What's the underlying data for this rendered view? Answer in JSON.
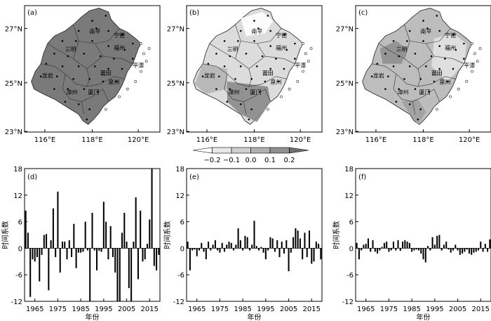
{
  "map_panels": [
    {
      "label": "(a)",
      "lat_ticks": [
        "27°N",
        "25°N",
        "23°N"
      ],
      "lon_ticks": [
        "116°E",
        "118°E",
        "120°E"
      ],
      "fill_color": "#7a7a7a",
      "cities": [
        "南平",
        "宁德",
        "三明",
        "福州",
        "莆田",
        "龙岩",
        "泉州",
        "漳州",
        "厦门",
        "平潭"
      ]
    },
    {
      "label": "(b)",
      "lat_ticks": [
        "27°N",
        "25°N",
        "23°N"
      ],
      "lon_ticks": [
        "116°E",
        "118°E",
        "120°E"
      ],
      "fill_color": "#dcdcdc",
      "cities": [
        "南平",
        "宁德",
        "三明",
        "福州",
        "莆田",
        "龙岩",
        "泉州",
        "漳州",
        "厦门",
        "平潭"
      ]
    },
    {
      "label": "(c)",
      "lat_ticks": [
        "27°N",
        "25°N",
        "23°N"
      ],
      "lon_ticks": [
        "116°E",
        "118°E",
        "120°E"
      ],
      "fill_color": "#bdbdbd",
      "cities": [
        "南平",
        "宁德",
        "三明",
        "福州",
        "莆田",
        "龙岩",
        "泉州",
        "漳州",
        "厦门",
        "平潭"
      ]
    }
  ],
  "colorbar": {
    "ticks": [
      "−0.2",
      "−0.1",
      "0.0",
      "0.1",
      "0.2"
    ],
    "colors": [
      "#ffffff",
      "#e8e8e8",
      "#cfcfcf",
      "#b0b0b0",
      "#8f8f8f",
      "#6f6f6f"
    ]
  },
  "chart_data": [
    {
      "type": "bar",
      "label": "(d)",
      "xlabel": "年份",
      "ylabel": "时间系数",
      "ylim": [
        -12,
        18
      ],
      "yticks": [
        -12,
        -6,
        0,
        6,
        12,
        18
      ],
      "xticks": [
        1965,
        1975,
        1985,
        1995,
        2005,
        2015
      ],
      "x": [
        1961,
        1962,
        1963,
        1964,
        1965,
        1966,
        1967,
        1968,
        1969,
        1970,
        1971,
        1972,
        1973,
        1974,
        1975,
        1976,
        1977,
        1978,
        1979,
        1980,
        1981,
        1982,
        1983,
        1984,
        1985,
        1986,
        1987,
        1988,
        1989,
        1990,
        1991,
        1992,
        1993,
        1994,
        1995,
        1996,
        1997,
        1998,
        1999,
        2000,
        2001,
        2002,
        2003,
        2004,
        2005,
        2006,
        2007,
        2008,
        2009,
        2010,
        2011,
        2012,
        2013,
        2014,
        2015,
        2016,
        2017,
        2018,
        2019
      ],
      "values": [
        8.5,
        3.5,
        -11,
        -2.5,
        -3,
        -2,
        -7.5,
        -1.5,
        3,
        3.2,
        -9.5,
        1.8,
        9,
        -2,
        12.8,
        -5.5,
        1.5,
        1.5,
        -2.5,
        1.8,
        -2,
        5.5,
        -4.5,
        -1,
        -1,
        -0.8,
        6,
        -0.5,
        -12,
        8,
        -0.5,
        -5,
        -0.6,
        -0.8,
        10.5,
        6,
        -2.5,
        5,
        -2,
        -5.5,
        -12,
        -12,
        3.5,
        8,
        1.5,
        -9,
        -12,
        1.5,
        11.5,
        -7,
        8.5,
        -3,
        -2.5,
        1,
        6.5,
        18,
        -4,
        -5,
        -1.5
      ]
    },
    {
      "type": "bar",
      "label": "(e)",
      "xlabel": "年份",
      "ylabel": "时间系数",
      "ylim": [
        -12,
        18
      ],
      "yticks": [
        -12,
        -6,
        0,
        6,
        12,
        18
      ],
      "xticks": [
        1965,
        1975,
        1985,
        1995,
        2005,
        2015
      ],
      "x": [
        1961,
        1962,
        1963,
        1964,
        1965,
        1966,
        1967,
        1968,
        1969,
        1970,
        1971,
        1972,
        1973,
        1974,
        1975,
        1976,
        1977,
        1978,
        1979,
        1980,
        1981,
        1982,
        1983,
        1984,
        1985,
        1986,
        1987,
        1988,
        1989,
        1990,
        1991,
        1992,
        1993,
        1994,
        1995,
        1996,
        1997,
        1998,
        1999,
        2000,
        2001,
        2002,
        2003,
        2004,
        2005,
        2006,
        2007,
        2008,
        2009,
        2010,
        2011,
        2012,
        2013,
        2014,
        2015,
        2016,
        2017,
        2018,
        2019
      ],
      "values": [
        1.5,
        -5,
        -0.5,
        -0.3,
        -1.8,
        -0.5,
        1.2,
        -0.8,
        -2.5,
        1.5,
        -0.5,
        0.8,
        1.8,
        -0.5,
        -1,
        1.2,
        -0.8,
        0.8,
        1.5,
        1.2,
        -0.5,
        0.8,
        4.5,
        1.8,
        -0.5,
        2.8,
        2.5,
        -0.5,
        0.8,
        6.2,
        0.5,
        -0.5,
        0.3,
        -1,
        -2.5,
        -0.5,
        2.5,
        2.2,
        -0.8,
        1.8,
        -2,
        1.5,
        -1.2,
        1.8,
        -5.2,
        -1,
        2.5,
        4.5,
        4,
        2.2,
        -2.5,
        3.5,
        -2,
        4,
        -3.5,
        -3,
        1.5,
        1,
        -2.5
      ]
    },
    {
      "type": "bar",
      "label": "(f)",
      "xlabel": "年份",
      "ylabel": "时间系数",
      "ylim": [
        -12,
        18
      ],
      "yticks": [
        -12,
        -6,
        0,
        6,
        12,
        18
      ],
      "xticks": [
        1965,
        1975,
        1985,
        1995,
        2005,
        2015
      ],
      "x": [
        1961,
        1962,
        1963,
        1964,
        1965,
        1966,
        1967,
        1968,
        1969,
        1970,
        1971,
        1972,
        1973,
        1974,
        1975,
        1976,
        1977,
        1978,
        1979,
        1980,
        1981,
        1982,
        1983,
        1984,
        1985,
        1986,
        1987,
        1988,
        1989,
        1990,
        1991,
        1992,
        1993,
        1994,
        1995,
        1996,
        1997,
        1998,
        1999,
        2000,
        2001,
        2002,
        2003,
        2004,
        2005,
        2006,
        2007,
        2008,
        2009,
        2010,
        2011,
        2012,
        2013,
        2014,
        2015,
        2016,
        2017,
        2018,
        2019
      ],
      "values": [
        1.2,
        -2.5,
        -0.5,
        0.8,
        1,
        2.2,
        -0.8,
        1.8,
        -0.8,
        -1.2,
        -0.5,
        0.3,
        1.2,
        1.5,
        -0.8,
        -0.5,
        1.5,
        -0.5,
        1.8,
        -0.6,
        1.5,
        1.8,
        1.5,
        1.2,
        -0.8,
        -0.5,
        -0.3,
        -0.5,
        -1.2,
        -2.5,
        -3.2,
        0.5,
        -0.5,
        2.5,
        0.8,
        2.8,
        3,
        -0.5,
        0.8,
        1.5,
        -0.3,
        -1,
        -0.5,
        0.8,
        -0.5,
        -1.5,
        -1.2,
        -0.8,
        -0.3,
        -1.2,
        -1.5,
        -1,
        -0.8,
        -0.5,
        1.5,
        -0.8,
        1,
        -0.8,
        2
      ]
    }
  ]
}
